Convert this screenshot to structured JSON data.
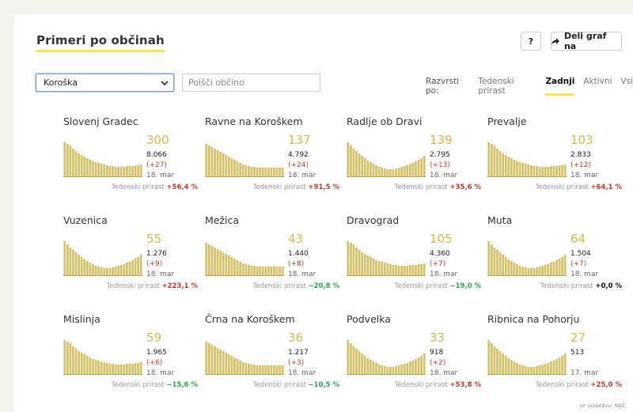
{
  "header": {
    "title": "Primeri po občinah",
    "help_label": "?",
    "share_label": "Deli graf na"
  },
  "filters": {
    "region_value": "Koroška",
    "search_placeholder": "Poišči občino"
  },
  "sort": {
    "label": "Razvrsti po:",
    "options": [
      "Tedenski prirast",
      "Zadnji",
      "Aktivni",
      "Vsi"
    ],
    "active": "Zadnji"
  },
  "growth_label": "Tedenski prirast",
  "source": "vir podatkov: NIJZ",
  "municipalities": [
    {
      "name": "Slovenj Gradec",
      "active": "300",
      "total": "8.066",
      "delta": "(+27)",
      "date": "18. mar",
      "growth": "+56,4 %",
      "trend": "pos",
      "shape": "a"
    },
    {
      "name": "Ravne na Koroškem",
      "active": "137",
      "total": "4.792",
      "delta": "(+24)",
      "date": "18. mar",
      "growth": "+91,5 %",
      "trend": "pos",
      "shape": "b"
    },
    {
      "name": "Radlje ob Dravi",
      "active": "139",
      "total": "2.795",
      "delta": "(+13)",
      "date": "18. mar",
      "growth": "+35,6 %",
      "trend": "pos",
      "shape": "c"
    },
    {
      "name": "Prevalje",
      "active": "103",
      "total": "2.833",
      "delta": "(+12)",
      "date": "18. mar",
      "growth": "+64,1 %",
      "trend": "pos",
      "shape": "a"
    },
    {
      "name": "Vuzenica",
      "active": "55",
      "total": "1.276",
      "delta": "(+9)",
      "date": "18. mar",
      "growth": "+223,1 %",
      "trend": "pos",
      "shape": "c"
    },
    {
      "name": "Mežica",
      "active": "43",
      "total": "1.440",
      "delta": "(+8)",
      "date": "18. mar",
      "growth": "−20,8 %",
      "trend": "neg",
      "shape": "b"
    },
    {
      "name": "Dravograd",
      "active": "105",
      "total": "4.360",
      "delta": "(+7)",
      "date": "18. mar",
      "growth": "−19,0 %",
      "trend": "neg",
      "shape": "a"
    },
    {
      "name": "Muta",
      "active": "64",
      "total": "1.504",
      "delta": "(+7)",
      "date": "18. mar",
      "growth": "+0,0 %",
      "trend": "zero",
      "shape": "c"
    },
    {
      "name": "Mislinja",
      "active": "59",
      "total": "1.965",
      "delta": "(+6)",
      "date": "18. mar",
      "growth": "−15,6 %",
      "trend": "neg",
      "shape": "a"
    },
    {
      "name": "Črna na Koroškem",
      "active": "36",
      "total": "1.217",
      "delta": "(+3)",
      "date": "18. mar",
      "growth": "−10,5 %",
      "trend": "neg",
      "shape": "b"
    },
    {
      "name": "Podvelka",
      "active": "33",
      "total": "918",
      "delta": "(+2)",
      "date": "18. mar",
      "growth": "+53,8 %",
      "trend": "pos",
      "shape": "c"
    },
    {
      "name": "Ribnica na Pohorju",
      "active": "27",
      "total": "513",
      "delta": "",
      "date": "17. mar",
      "growth": "+25,0 %",
      "trend": "pos",
      "shape": "c"
    }
  ],
  "colors": {
    "bar": "#d4c26a",
    "bar_dark": "#b8a448",
    "accent": "#ffe34d"
  }
}
